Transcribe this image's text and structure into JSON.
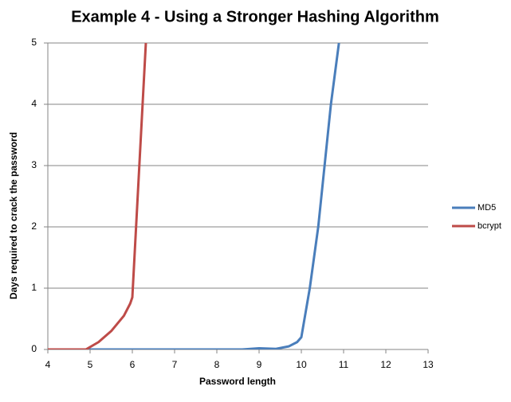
{
  "chart_data": {
    "type": "line",
    "title": "Example 4 - Using a Stronger Hashing Algorithm",
    "x_label": "Password length",
    "y_label": "Days required to crack the password",
    "xlim": [
      4,
      13
    ],
    "xticks": [
      4,
      5,
      6,
      7,
      8,
      9,
      10,
      11,
      12,
      13
    ],
    "ylim": [
      0,
      5
    ],
    "yticks": [
      0,
      1,
      2,
      3,
      4,
      5
    ],
    "grid": true,
    "legend": "right",
    "series": [
      {
        "name": "MD5",
        "color": "#4a7ebb",
        "x": [
          4,
          5,
          6,
          7,
          8,
          8.6,
          9,
          9.4,
          9.7,
          9.9,
          10,
          10.2,
          10.4,
          10.7,
          10.89
        ],
        "values": [
          0,
          0,
          0,
          0,
          0,
          0,
          0.02,
          0.01,
          0.05,
          0.12,
          0.2,
          1.0,
          2,
          4,
          5
        ]
      },
      {
        "name": "bcrypt",
        "color": "#be4b48",
        "x": [
          4,
          4.5,
          4.9,
          5.2,
          5.5,
          5.8,
          5.95,
          6,
          6.32
        ],
        "values": [
          0,
          0,
          0,
          0.12,
          0.3,
          0.55,
          0.75,
          0.85,
          5
        ]
      }
    ]
  }
}
